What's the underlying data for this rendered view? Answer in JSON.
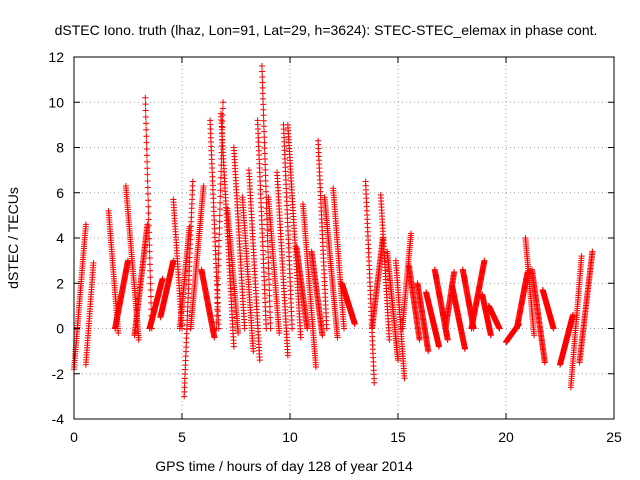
{
  "chart_data": {
    "type": "scatter",
    "title": "dSTEC Iono. truth (lhaz, Lon=91, Lat=29, h=3624): STEC-STEC_elemax in phase cont.",
    "xlabel": "GPS time / hours of day 128 of year 2014",
    "ylabel": "dSTEC  / TECUs",
    "xlim": [
      0,
      25
    ],
    "ylim": [
      -4,
      12
    ],
    "xticks": [
      0,
      5,
      10,
      15,
      20,
      25
    ],
    "yticks": [
      -4,
      -2,
      0,
      2,
      4,
      6,
      8,
      10,
      12
    ],
    "grid": true,
    "marker": "+",
    "color": "#ff0000",
    "series": [
      {
        "arcs": [
          {
            "t0": 0.0,
            "t1": 0.55,
            "v0": -1.8,
            "v1": 4.6
          },
          {
            "t0": 0.55,
            "t1": 0.9,
            "v0": -1.6,
            "v1": 2.9
          },
          {
            "t0": 1.6,
            "t1": 2.05,
            "v0": 5.2,
            "v1": -0.2
          },
          {
            "t0": 1.9,
            "t1": 2.5,
            "v0": 0.0,
            "v1": 3.0
          },
          {
            "t0": 2.4,
            "t1": 3.0,
            "v0": 6.3,
            "v1": -0.5
          },
          {
            "t0": 2.8,
            "t1": 3.4,
            "v0": -0.3,
            "v1": 4.6
          },
          {
            "t0": 3.3,
            "t1": 3.6,
            "v0": 10.2,
            "v1": 0.0
          },
          {
            "t0": 3.5,
            "t1": 4.1,
            "v0": 0.0,
            "v1": 2.2
          },
          {
            "t0": 4.0,
            "t1": 4.6,
            "v0": 0.5,
            "v1": 3.0
          },
          {
            "t0": 4.6,
            "t1": 5.0,
            "v0": 5.7,
            "v1": 0.0
          },
          {
            "t0": 4.9,
            "t1": 5.35,
            "v0": 0.0,
            "v1": 4.5
          },
          {
            "t0": 5.1,
            "t1": 5.5,
            "v0": -3.0,
            "v1": 6.5
          },
          {
            "t0": 5.4,
            "t1": 6.0,
            "v0": 0.0,
            "v1": 6.3
          },
          {
            "t0": 5.9,
            "t1": 6.5,
            "v0": 2.6,
            "v1": -0.4
          },
          {
            "t0": 6.3,
            "t1": 6.7,
            "v0": 9.2,
            "v1": 0.0
          },
          {
            "t0": 6.6,
            "t1": 6.9,
            "v0": 0.0,
            "v1": 10.0
          },
          {
            "t0": 6.8,
            "t1": 7.4,
            "v0": 9.5,
            "v1": -0.8
          },
          {
            "t0": 7.1,
            "t1": 7.6,
            "v0": 5.3,
            "v1": -0.2
          },
          {
            "t0": 7.4,
            "t1": 7.9,
            "v0": 8.0,
            "v1": 0.0
          },
          {
            "t0": 7.8,
            "t1": 8.3,
            "v0": 5.8,
            "v1": -1.0
          },
          {
            "t0": 8.1,
            "t1": 8.6,
            "v0": 7.0,
            "v1": -1.4
          },
          {
            "t0": 8.5,
            "t1": 8.9,
            "v0": 9.2,
            "v1": 0.0
          },
          {
            "t0": 8.7,
            "t1": 9.1,
            "v0": 11.6,
            "v1": 0.0
          },
          {
            "t0": 9.0,
            "t1": 9.5,
            "v0": 5.8,
            "v1": -0.2
          },
          {
            "t0": 9.4,
            "t1": 9.9,
            "v0": 6.9,
            "v1": -1.2
          },
          {
            "t0": 9.7,
            "t1": 10.1,
            "v0": 9.0,
            "v1": 0.0
          },
          {
            "t0": 9.9,
            "t1": 10.5,
            "v0": 9.0,
            "v1": -0.4
          },
          {
            "t0": 10.3,
            "t1": 10.8,
            "v0": 3.6,
            "v1": 0.0
          },
          {
            "t0": 10.6,
            "t1": 11.2,
            "v0": 5.5,
            "v1": -1.7
          },
          {
            "t0": 11.0,
            "t1": 11.5,
            "v0": 3.4,
            "v1": -0.3
          },
          {
            "t0": 11.3,
            "t1": 11.7,
            "v0": 8.3,
            "v1": 0.0
          },
          {
            "t0": 11.6,
            "t1": 12.2,
            "v0": 5.8,
            "v1": -0.4
          },
          {
            "t0": 12.0,
            "t1": 12.5,
            "v0": 6.2,
            "v1": 0.0
          },
          {
            "t0": 12.4,
            "t1": 13.0,
            "v0": 2.0,
            "v1": 0.2
          },
          {
            "t0": 13.5,
            "t1": 13.9,
            "v0": 6.5,
            "v1": -2.4
          },
          {
            "t0": 13.8,
            "t1": 14.3,
            "v0": 0.0,
            "v1": 4.0
          },
          {
            "t0": 14.2,
            "t1": 14.6,
            "v0": 5.9,
            "v1": -0.5
          },
          {
            "t0": 14.5,
            "t1": 15.0,
            "v0": 3.4,
            "v1": -1.4
          },
          {
            "t0": 14.9,
            "t1": 15.3,
            "v0": 3.0,
            "v1": -2.2
          },
          {
            "t0": 15.2,
            "t1": 15.6,
            "v0": 0.0,
            "v1": 4.2
          },
          {
            "t0": 15.5,
            "t1": 16.0,
            "v0": 2.8,
            "v1": -0.5
          },
          {
            "t0": 15.9,
            "t1": 16.4,
            "v0": 2.0,
            "v1": -1.0
          },
          {
            "t0": 16.3,
            "t1": 16.9,
            "v0": 1.6,
            "v1": -0.8
          },
          {
            "t0": 16.7,
            "t1": 17.3,
            "v0": 2.6,
            "v1": -0.5
          },
          {
            "t0": 17.2,
            "t1": 17.6,
            "v0": 0.0,
            "v1": 2.5
          },
          {
            "t0": 17.5,
            "t1": 18.1,
            "v0": 1.9,
            "v1": -0.9
          },
          {
            "t0": 18.0,
            "t1": 18.5,
            "v0": 2.6,
            "v1": 0.0
          },
          {
            "t0": 18.4,
            "t1": 19.0,
            "v0": 0.0,
            "v1": 3.0
          },
          {
            "t0": 18.9,
            "t1": 19.3,
            "v0": 1.5,
            "v1": -0.3
          },
          {
            "t0": 19.2,
            "t1": 19.7,
            "v0": 1.0,
            "v1": 0.0
          },
          {
            "t0": 20.0,
            "t1": 20.6,
            "v0": -0.6,
            "v1": 0.2
          },
          {
            "t0": 20.5,
            "t1": 21.0,
            "v0": 0.0,
            "v1": 2.5
          },
          {
            "t0": 20.9,
            "t1": 21.3,
            "v0": 4.0,
            "v1": -0.3
          },
          {
            "t0": 21.2,
            "t1": 21.8,
            "v0": 2.6,
            "v1": -1.5
          },
          {
            "t0": 21.7,
            "t1": 22.2,
            "v0": 1.7,
            "v1": 0.0
          },
          {
            "t0": 22.5,
            "t1": 23.1,
            "v0": -1.6,
            "v1": 0.6
          },
          {
            "t0": 23.0,
            "t1": 23.5,
            "v0": -2.6,
            "v1": 3.2
          },
          {
            "t0": 23.4,
            "t1": 24.0,
            "v0": -1.5,
            "v1": 3.4
          }
        ]
      }
    ]
  }
}
